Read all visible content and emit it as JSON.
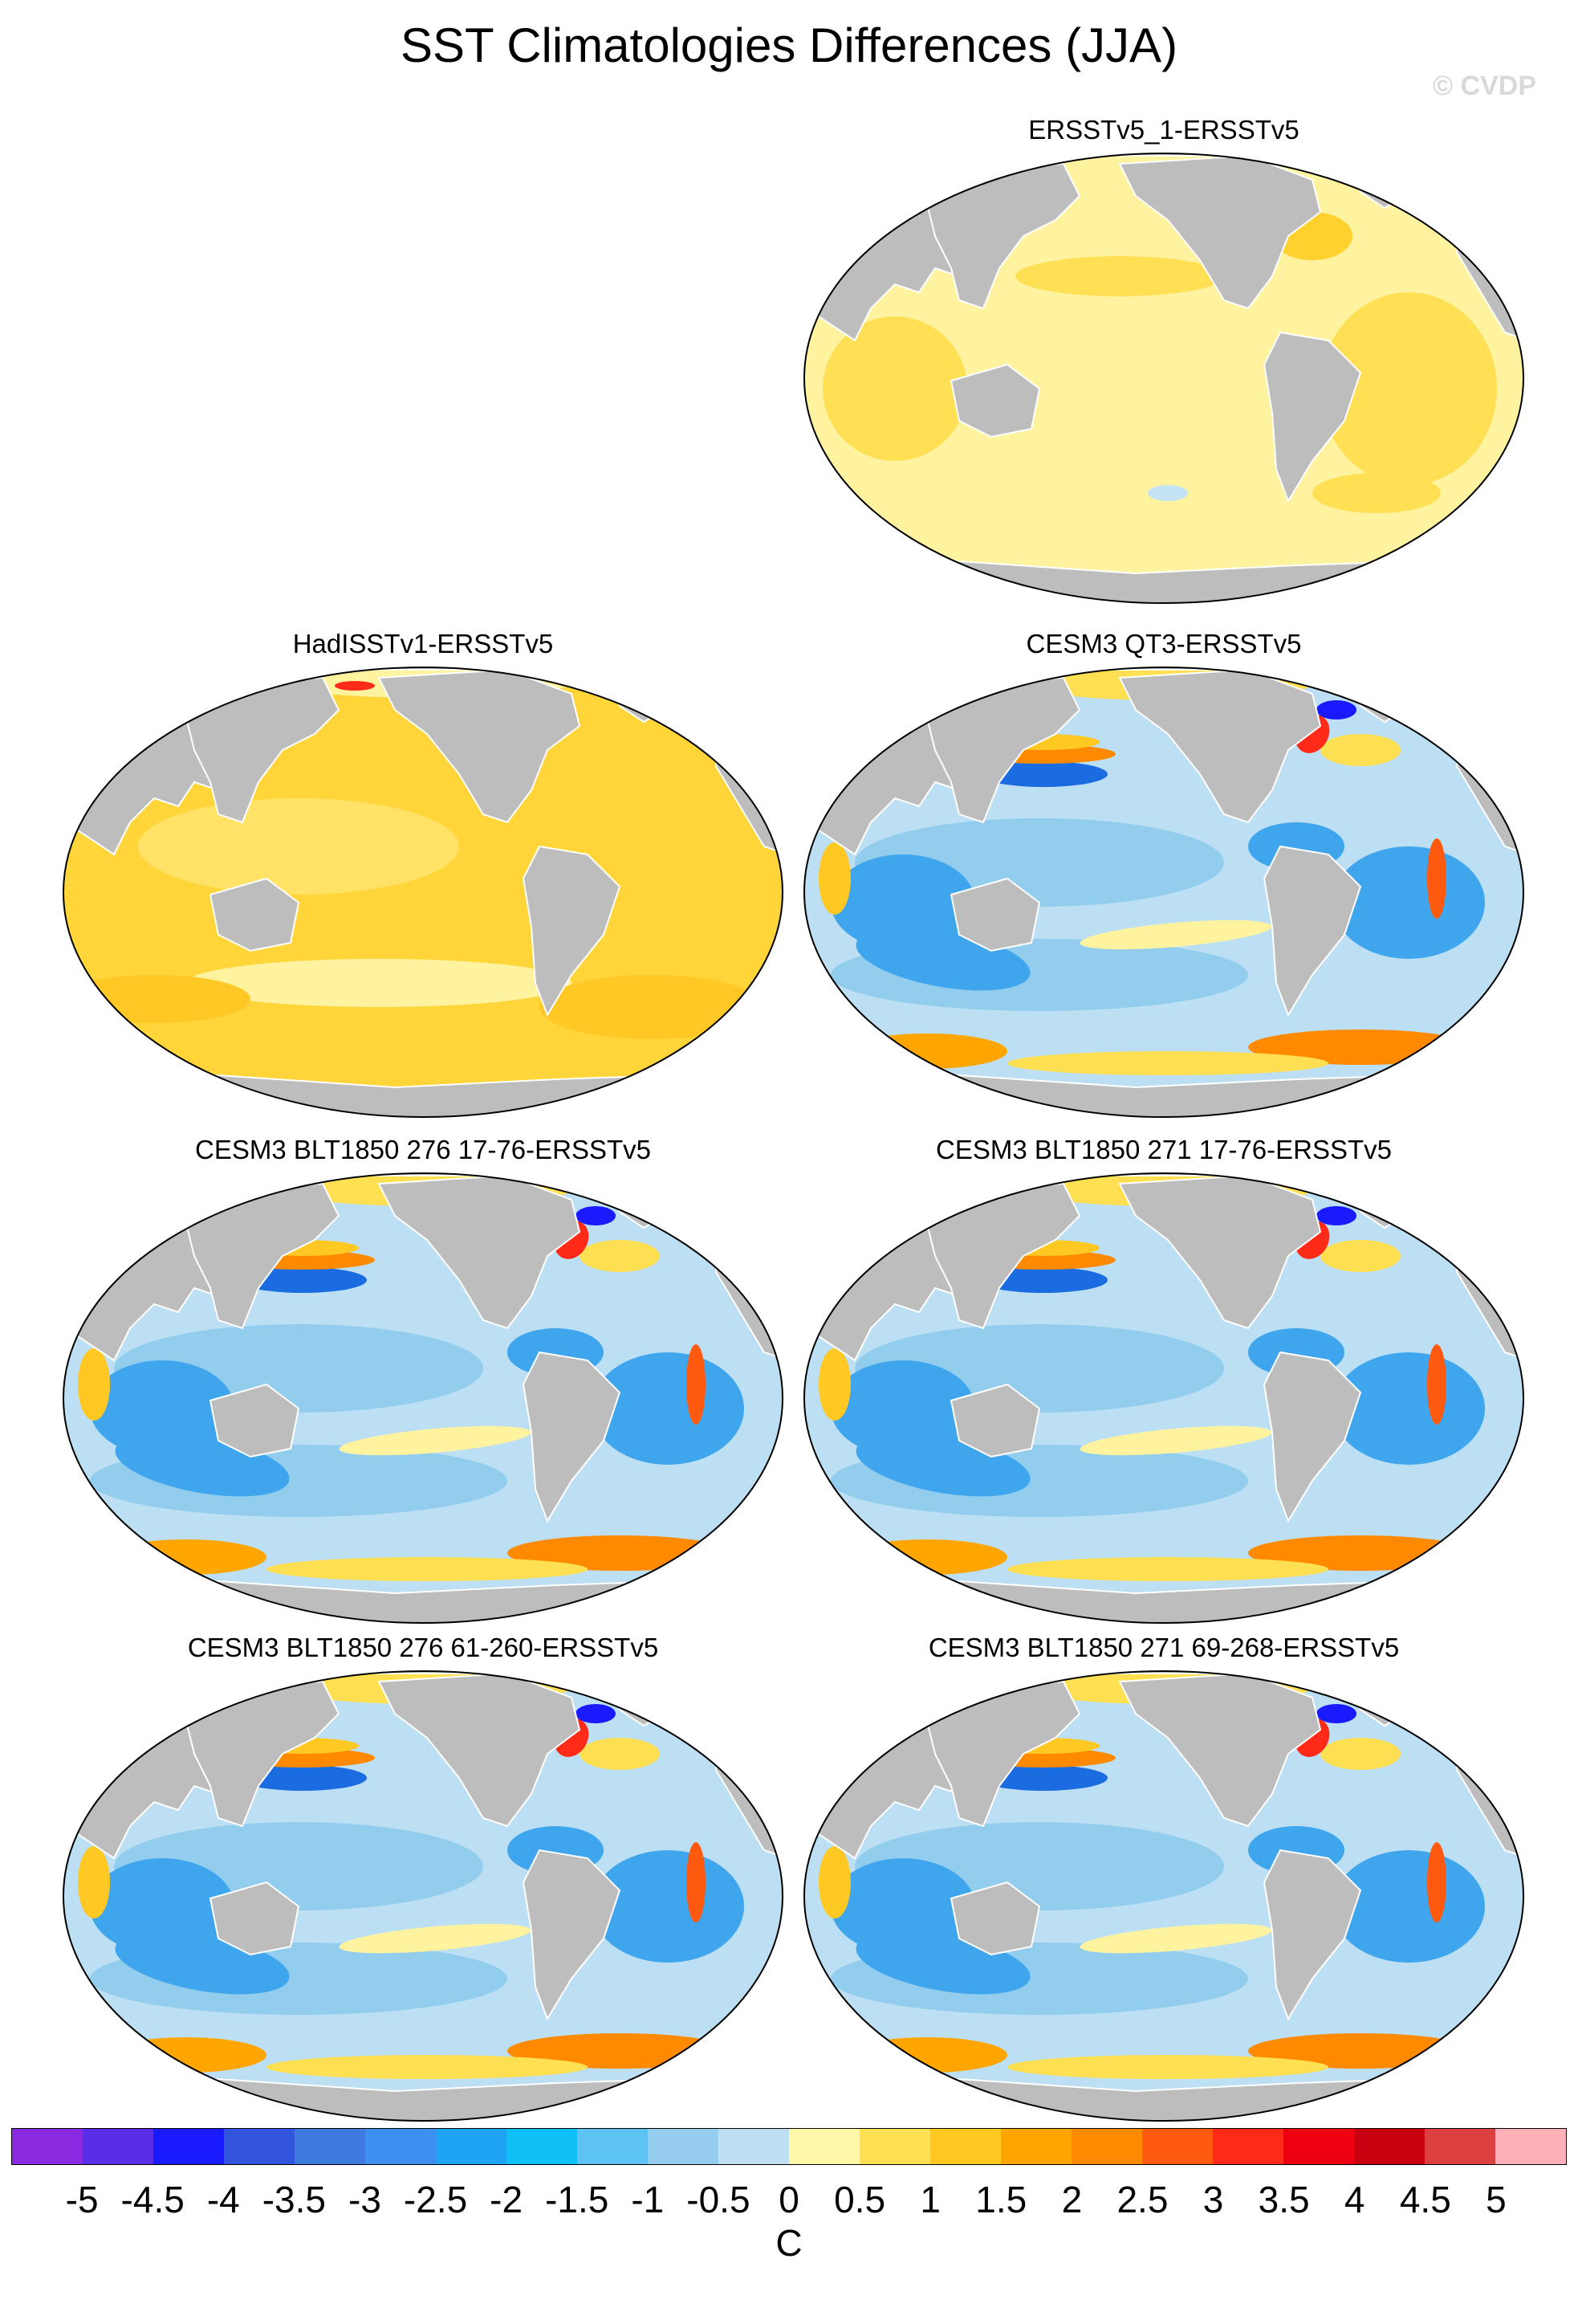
{
  "title": "SST Climatologies Differences (JJA)",
  "watermark": "© CVDP",
  "panels": [
    {
      "name": "ERSSTv5_1-ERSSTv5",
      "pattern": "weak-positive"
    },
    {
      "name": "HadISSTv1-ERSSTv5",
      "pattern": "positive"
    },
    {
      "name": "CESM3 QT3-ERSSTv5",
      "pattern": "model"
    },
    {
      "name": "CESM3 BLT1850 276 17-76-ERSSTv5",
      "pattern": "model"
    },
    {
      "name": "CESM3 BLT1850 271 17-76-ERSSTv5",
      "pattern": "model"
    },
    {
      "name": "CESM3 BLT1850 276 61-260-ERSSTv5",
      "pattern": "model"
    },
    {
      "name": "CESM3 BLT1850 271 69-268-ERSSTv5",
      "pattern": "model"
    }
  ],
  "colorbar": {
    "ticks": [
      "-5",
      "-4.5",
      "-4",
      "-3.5",
      "-3",
      "-2.5",
      "-2",
      "-1.5",
      "-1",
      "-0.5",
      "0",
      "0.5",
      "1",
      "1.5",
      "2",
      "2.5",
      "3",
      "3.5",
      "4",
      "4.5",
      "5"
    ],
    "colors": [
      "#8a2be2",
      "#5a2ee8",
      "#1a1aff",
      "#3355dd",
      "#3f7ae0",
      "#3d8ff0",
      "#1fa3f5",
      "#0fbff5",
      "#5cc3f2",
      "#96cdef",
      "#bfe0f3",
      "#fff7a8",
      "#ffe052",
      "#ffc822",
      "#ffa500",
      "#ff8a00",
      "#ff5a10",
      "#ff2a18",
      "#ee0010",
      "#c80010",
      "#dd4040",
      "#ffb0b8"
    ],
    "units": "C"
  },
  "colors": {
    "land": "#bdbdbd",
    "ocean_zero": "#fff7a8"
  }
}
